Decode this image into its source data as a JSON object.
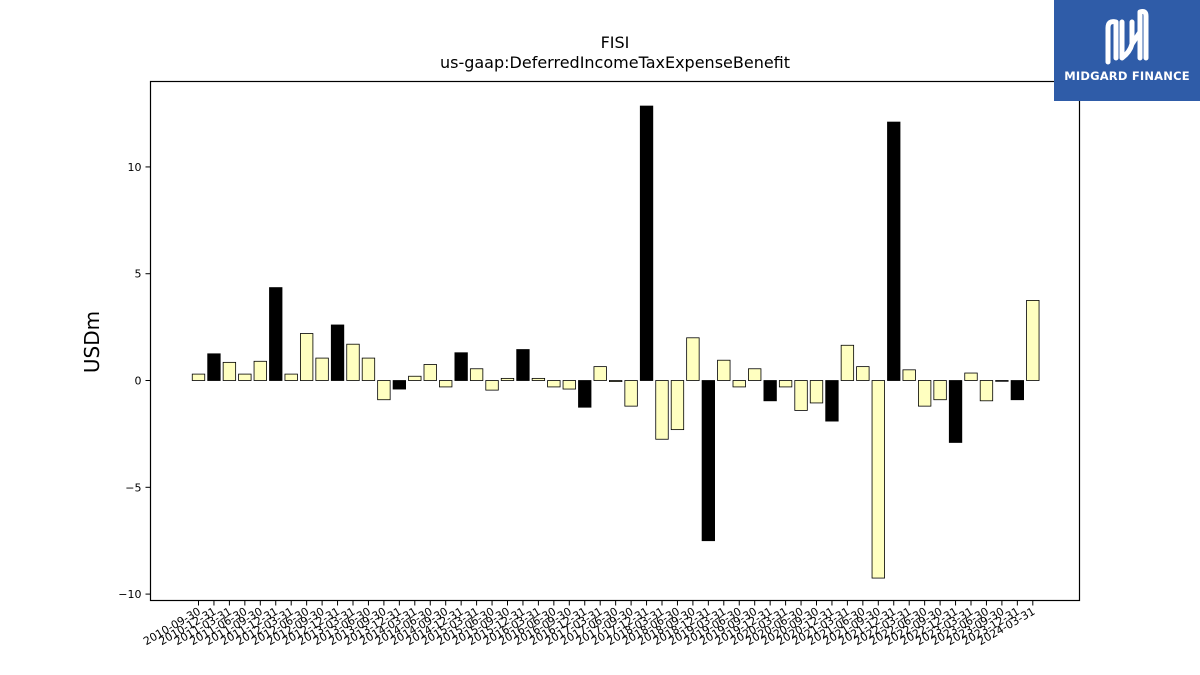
{
  "chart_data": {
    "type": "bar",
    "title": "FISI",
    "subtitle": "us-gaap:DeferredIncomeTaxExpenseBenefit",
    "xlabel": "",
    "ylabel": "USDm",
    "ylim": [
      -10.3,
      14.0
    ],
    "yticks": [
      10,
      5,
      0,
      -5,
      -10
    ],
    "ytick_labels": [
      "10",
      "5",
      "0",
      "−5",
      "−10"
    ],
    "grid": false,
    "colors": {
      "quarterly": "#ffffc0",
      "annual": "#000000",
      "edge": "#000000"
    },
    "categories": [
      "2010-09-30",
      "2010-12-31",
      "2011-03-31",
      "2011-06-30",
      "2011-09-30",
      "2011-12-31",
      "2012-03-31",
      "2012-06-30",
      "2012-09-30",
      "2012-12-31",
      "2013-03-31",
      "2013-06-30",
      "2013-09-30",
      "2013-12-31",
      "2014-03-31",
      "2014-06-30",
      "2014-09-30",
      "2014-12-31",
      "2015-03-31",
      "2015-06-30",
      "2015-09-30",
      "2015-12-31",
      "2016-03-31",
      "2016-06-30",
      "2016-09-30",
      "2016-12-31",
      "2017-03-31",
      "2017-06-30",
      "2017-09-30",
      "2017-12-31",
      "2018-03-31",
      "2018-06-30",
      "2018-09-30",
      "2018-12-31",
      "2019-03-31",
      "2019-06-30",
      "2019-09-30",
      "2019-12-31",
      "2020-03-31",
      "2020-06-30",
      "2020-09-30",
      "2020-12-31",
      "2021-03-31",
      "2021-06-30",
      "2021-09-30",
      "2021-12-31",
      "2022-03-31",
      "2022-06-30",
      "2022-09-30",
      "2022-12-31",
      "2023-03-31",
      "2023-06-30",
      "2023-09-30",
      "2023-12-31",
      "2024-03-31"
    ],
    "values": [
      0.3,
      1.25,
      0.85,
      0.3,
      0.9,
      4.35,
      0.3,
      2.2,
      1.05,
      2.6,
      1.7,
      1.05,
      -0.9,
      -0.4,
      0.2,
      0.75,
      -0.3,
      1.3,
      0.55,
      -0.45,
      0.1,
      1.45,
      0.1,
      -0.3,
      -0.4,
      -1.25,
      0.65,
      -0.05,
      -1.2,
      12.85,
      -2.75,
      -2.3,
      2.0,
      -7.5,
      0.95,
      -0.3,
      0.55,
      -0.95,
      -0.3,
      -1.4,
      -1.05,
      -1.9,
      1.65,
      0.65,
      -9.25,
      12.1,
      0.5,
      -1.2,
      -0.9,
      -2.9,
      0.35,
      -0.95,
      -0.02,
      -0.9,
      3.75
    ],
    "annual_flags": [
      false,
      true,
      false,
      false,
      false,
      true,
      false,
      false,
      false,
      true,
      false,
      false,
      false,
      true,
      false,
      false,
      false,
      true,
      false,
      false,
      false,
      true,
      false,
      false,
      false,
      true,
      false,
      false,
      false,
      true,
      false,
      false,
      false,
      true,
      false,
      false,
      false,
      true,
      false,
      false,
      false,
      true,
      false,
      false,
      false,
      true,
      false,
      false,
      false,
      true,
      false,
      false,
      false,
      true,
      false
    ]
  },
  "logo": {
    "text": "MIDGARD FINANCE",
    "icon": "midgard-logo-icon"
  }
}
